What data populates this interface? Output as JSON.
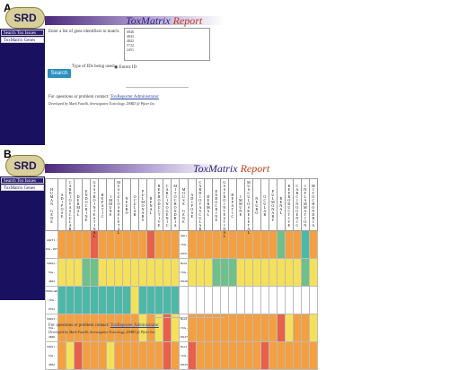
{
  "panel_a": {
    "letter": "A",
    "logo": "SRD",
    "title_main": "ToxMatrix ",
    "title_accent": "Report",
    "sidebar": [
      "Search Tox Issues",
      "ToxMatrix Genes"
    ],
    "prompt": "Enter a list of gene identifiers to match:",
    "gene_ids": [
      "6846",
      "4843",
      "4842",
      "5722",
      "2451"
    ],
    "id_type_label": "Type of IDs being used:",
    "id_type_value": "Entrez ID",
    "search_label": "Search",
    "contact_text": "For questions or problem contact:",
    "contact_link": "ToxReporter Administrator",
    "developer": "Developed by Mark Fanelli, Investigative Toxicology, DSRD @ Pfizer Inc."
  },
  "panel_b": {
    "letter": "B",
    "logo": "SRD",
    "title_main": "ToxMatrix ",
    "title_accent": "Report",
    "sidebar": [
      "Search Tox Issues",
      "ToxMatrix Genes"
    ],
    "human_header": "HUMAN GENE",
    "mouse_header": "MOUSE GENE",
    "columns_left": [
      "ADIPOSE",
      "CARDIOVASCULAR",
      "DERMAL",
      "ENDOCRINE",
      "GASTROINTESTINAL",
      "HEPATIC",
      "IMMUNE",
      "MUSCULOSKELETAL",
      "NEURO",
      "OCULAR",
      "PULMONARY",
      "RENAL",
      "REPRODUCTIVE",
      "CARCINOGENIC",
      "MITOCHONDRIA"
    ],
    "columns_right": [
      "ADIPOSE",
      "CARDIOVASCULAR",
      "DERMAL",
      "ENDOCRINE",
      "GASTROINTESTINAL",
      "HEPATIC",
      "IMMUNE",
      "MUSCULOSKELETAL",
      "NEURO",
      "OCULAR",
      "PULMONARY",
      "RENAL",
      "REPRODUCTIVE",
      "CARCINOGENIC",
      "INFLAMMATION",
      "MITOCHONDRIA"
    ],
    "rows": [
      {
        "human": "AKT1 / NA - 207",
        "mouse": "Akt1 / NA - 11651",
        "left": [
          "o",
          "o",
          "o",
          "o",
          "r",
          "o",
          "o",
          "o",
          "o",
          "o",
          "o",
          "r",
          "o",
          "o",
          "o"
        ],
        "right": [
          "o",
          "o",
          "o",
          "o",
          "o",
          "o",
          "o",
          "o",
          "o",
          "o",
          "o",
          "g",
          "o",
          "o",
          "t",
          "o"
        ]
      },
      {
        "human": "NOS2 / NA - 4843",
        "mouse": "Nos2 / NA - 18126",
        "left": [
          "y",
          "y",
          "y",
          "g",
          "g",
          "y",
          "y",
          "y",
          "y",
          "y",
          "y",
          "y",
          "y",
          "y",
          "y"
        ],
        "right": [
          "y",
          "y",
          "y",
          "g",
          "g",
          "g",
          "y",
          "y",
          "y",
          "y",
          "y",
          "y",
          "y",
          "y",
          "g",
          "y"
        ]
      },
      {
        "human": "NOS1AP / NA - 9722",
        "mouse": "",
        "left": [
          "t",
          "t",
          "t",
          "t",
          "t",
          "t",
          "t",
          "t",
          "t",
          "y",
          "t",
          "t",
          "t",
          "t",
          "t"
        ],
        "right": [
          "w",
          "w",
          "w",
          "w",
          "w",
          "w",
          "w",
          "w",
          "w",
          "w",
          "w",
          "w",
          "w",
          "w",
          "w",
          "w"
        ]
      },
      {
        "human": "NOS3 / NA - 4846",
        "mouse": "Nos3 / NA - 18127",
        "left": [
          "o",
          "o",
          "o",
          "o",
          "o",
          "o",
          "o",
          "o",
          "o",
          "o",
          "y",
          "o",
          "y",
          "r",
          "y"
        ],
        "right": [
          "o",
          "o",
          "o",
          "o",
          "o",
          "o",
          "o",
          "o",
          "o",
          "o",
          "o",
          "r",
          "y",
          "o",
          "o",
          "y"
        ]
      },
      {
        "human": "NOS1 / NA - 4842",
        "mouse": "Nos1 / NA - 18125",
        "left": [
          "o",
          "y",
          "r",
          "o",
          "o",
          "o",
          "y",
          "o",
          "o",
          "o",
          "o",
          "o",
          "o",
          "r",
          "o"
        ],
        "right": [
          "r",
          "o",
          "o",
          "o",
          "o",
          "o",
          "o",
          "o",
          "o",
          "r",
          "o",
          "o",
          "o",
          "o",
          "o",
          "o"
        ]
      }
    ],
    "contact_text": "For questions or problem contact:",
    "contact_link": "ToxReporter Administrator",
    "developer": "Developed by Mark Fanelli, Investigative Toxicology, DSRD @ Pfizer Inc."
  }
}
